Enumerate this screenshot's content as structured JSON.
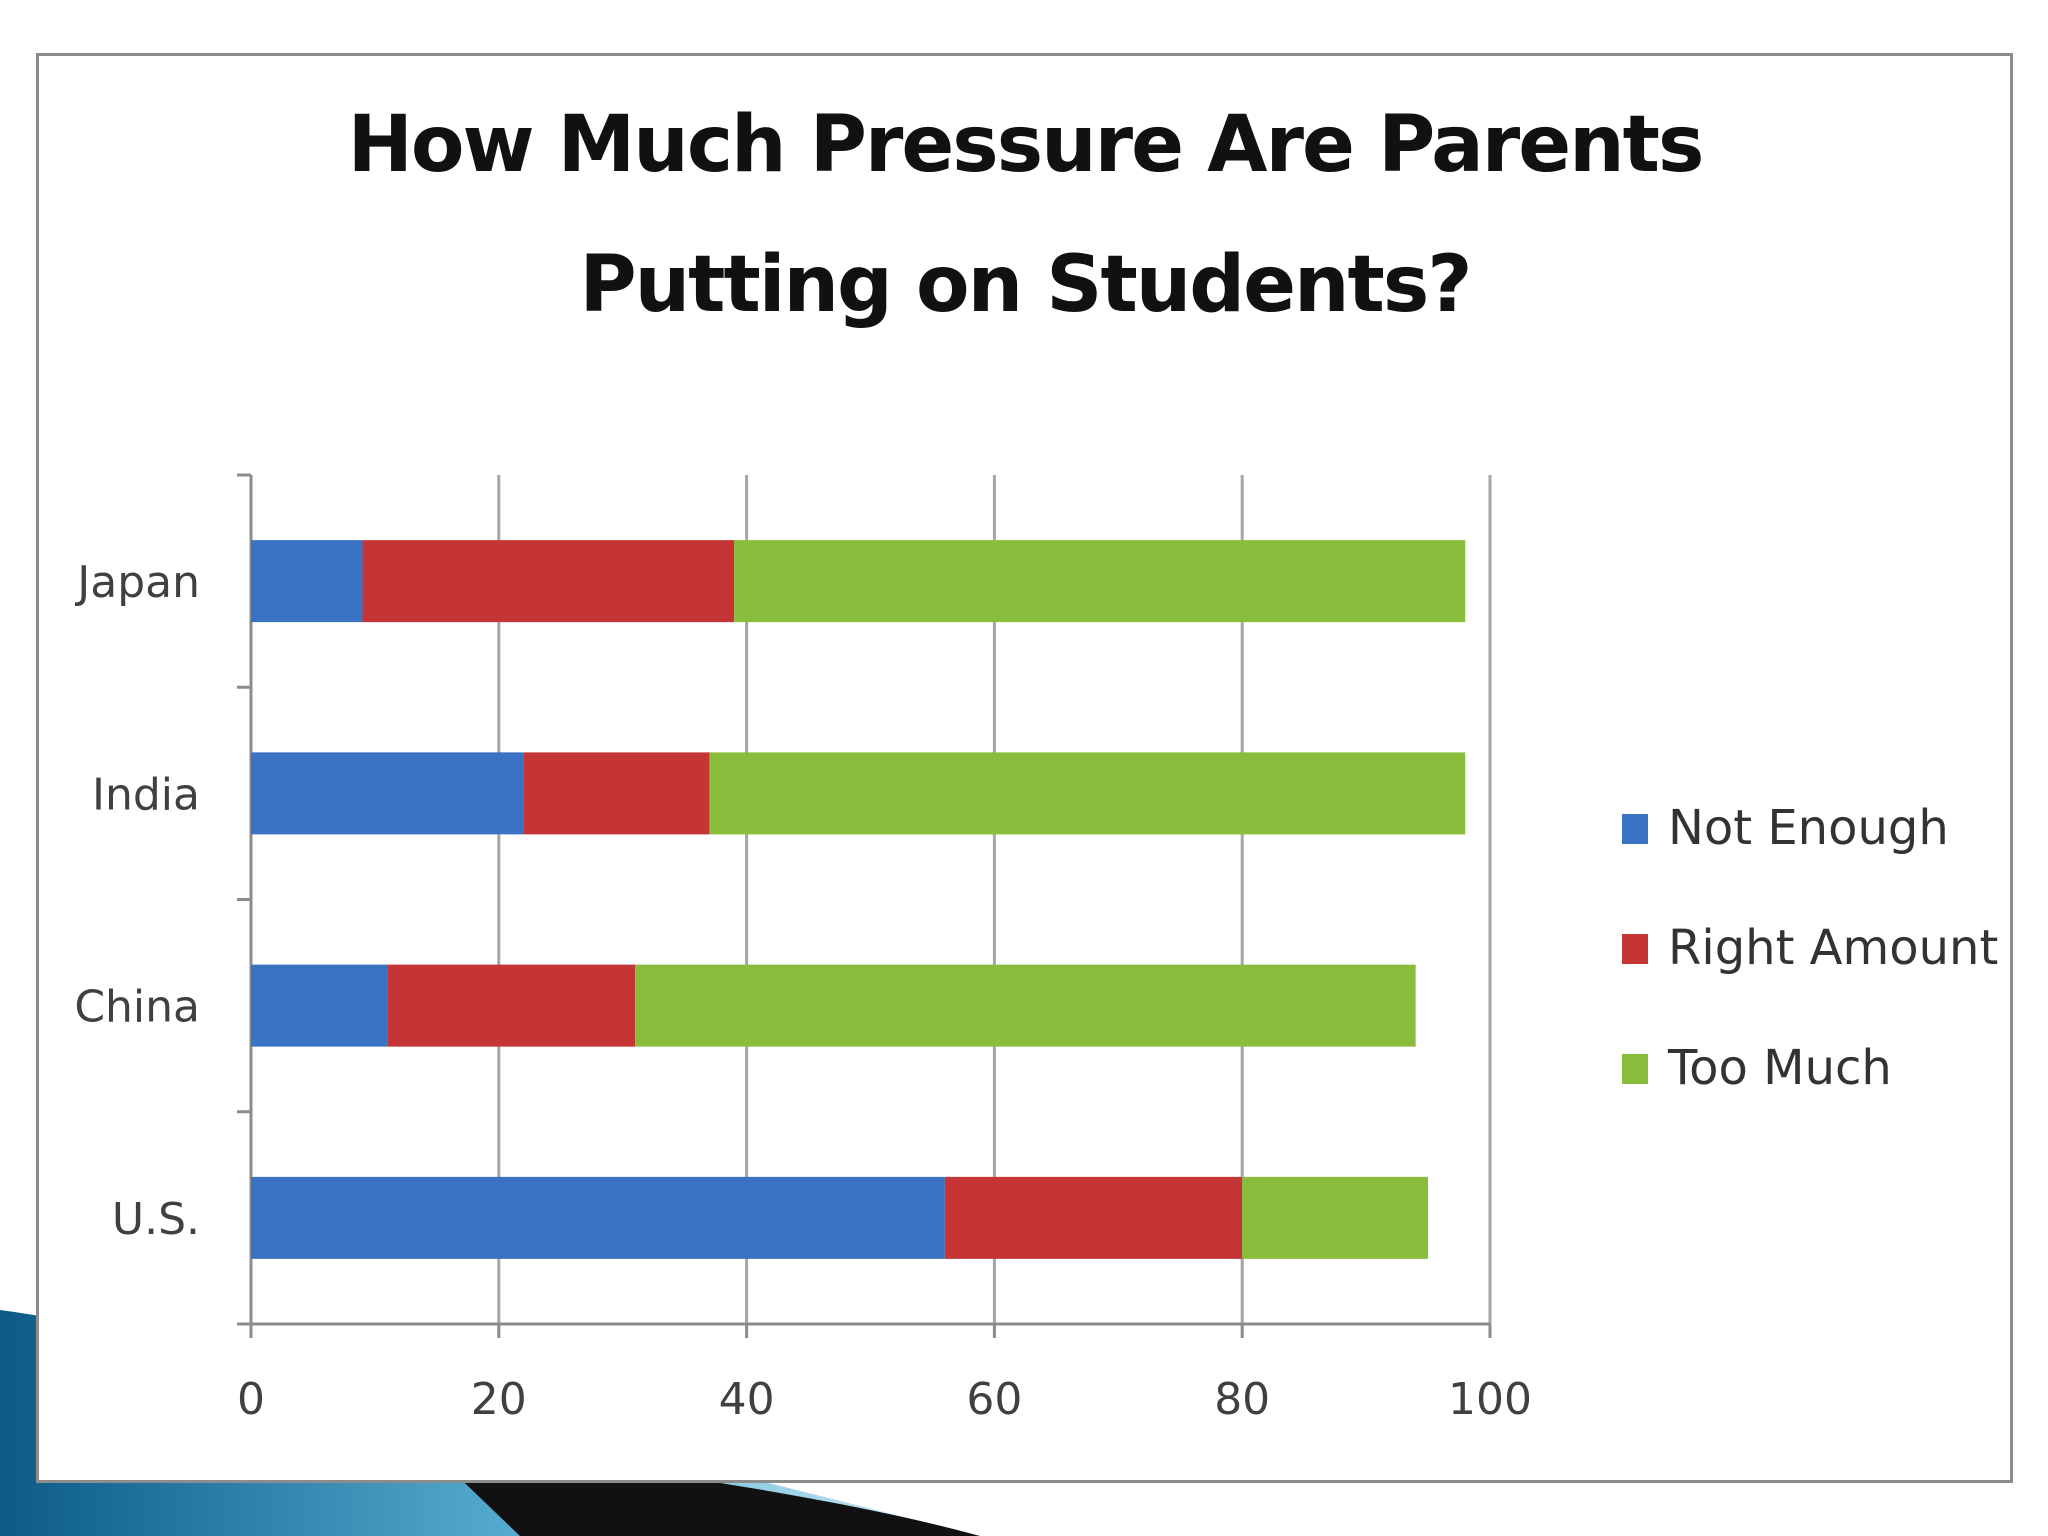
{
  "chart_data": {
    "type": "bar",
    "orientation": "horizontal",
    "stacked": true,
    "title": "How Much Pressure Are Parents Putting on Students?",
    "categories": [
      "Japan",
      "India",
      "China",
      "U.S."
    ],
    "series": [
      {
        "name": "Not Enough",
        "color": "#3a72c4",
        "values": [
          9,
          22,
          11,
          56
        ]
      },
      {
        "name": "Right Amount",
        "color": "#c53535",
        "values": [
          30,
          15,
          20,
          24
        ]
      },
      {
        "name": "Too Much",
        "color": "#8bbd3c",
        "values": [
          59,
          61,
          63,
          15
        ]
      }
    ],
    "xlim": [
      0,
      100
    ],
    "xticks": [
      "0",
      "20",
      "40",
      "60",
      "80",
      "100"
    ],
    "grid": true,
    "legend_position": "right"
  }
}
